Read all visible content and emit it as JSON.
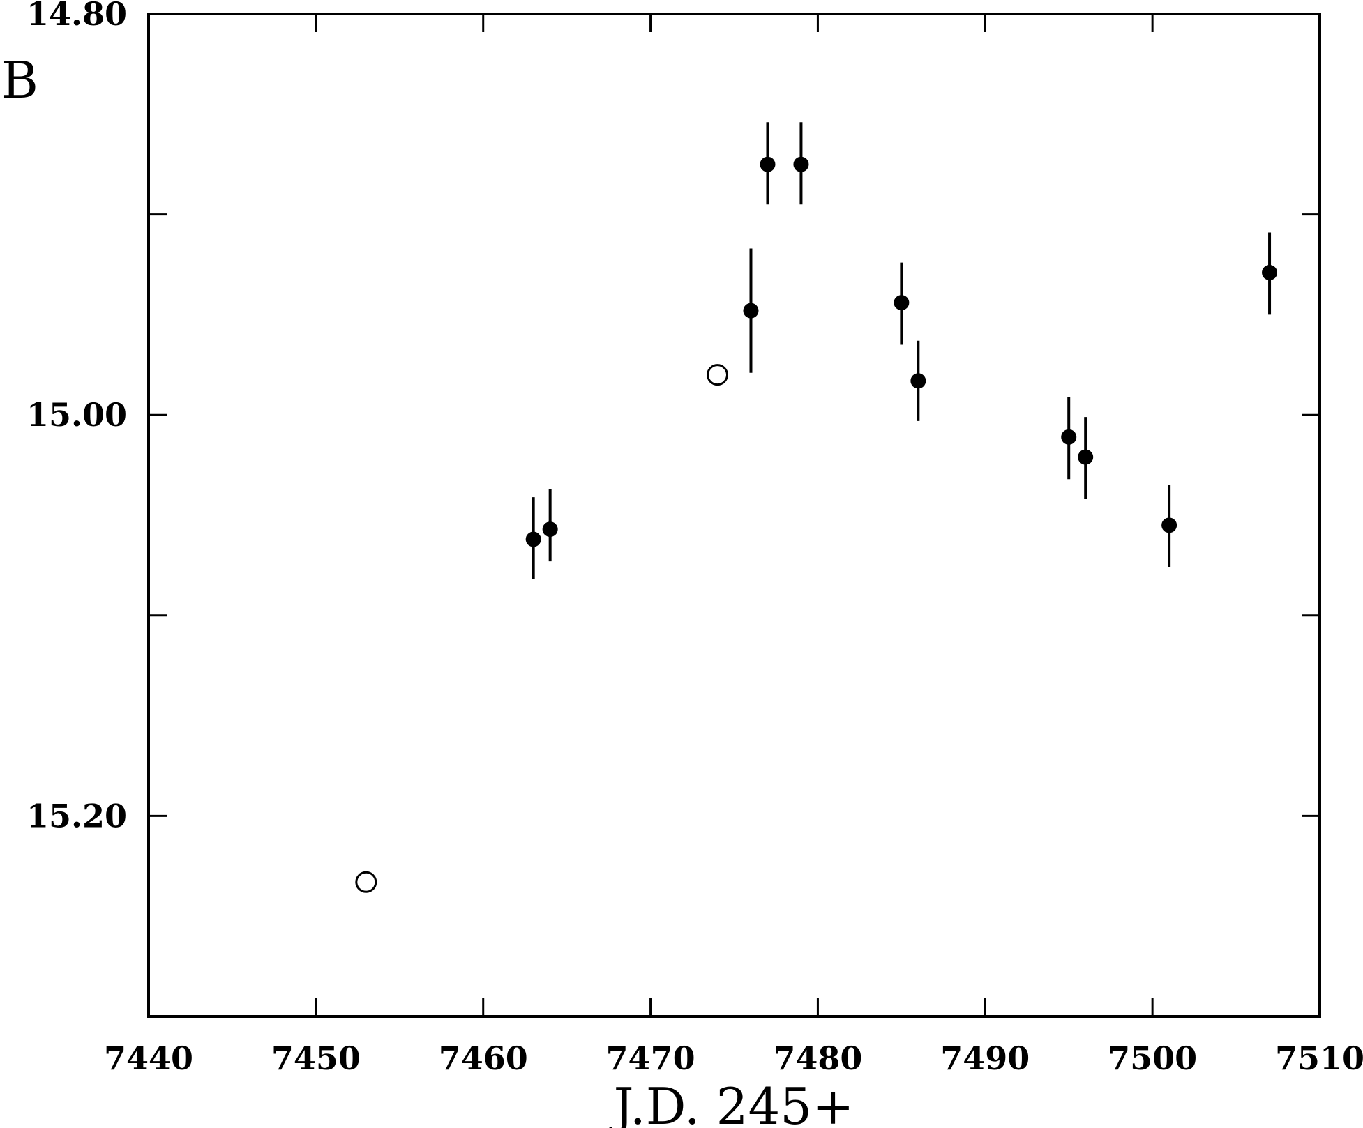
{
  "chart_data": {
    "type": "scatter",
    "title": "",
    "xlabel": "J.D. 245+",
    "ylabel": "B",
    "xlim": [
      7440,
      7510
    ],
    "ylim": [
      15.3,
      14.8
    ],
    "y_inverted": true,
    "grid": false,
    "x_ticks": [
      7440,
      7450,
      7460,
      7470,
      7480,
      7490,
      7500,
      7510
    ],
    "x_tick_labels": [
      "7440",
      "7450",
      "7460",
      "7470",
      "7480",
      "7490",
      "7500",
      "7510"
    ],
    "y_ticks": [
      14.8,
      15.0,
      15.2
    ],
    "y_tick_labels": [
      "14.80",
      "15.00",
      "15.20"
    ],
    "y_minor_ticks": [
      14.9,
      15.1
    ],
    "series": [
      {
        "marker": "filled-circle",
        "points": [
          {
            "x": 7463,
            "y": 15.062,
            "err_low": 15.041,
            "err_high": 15.082
          },
          {
            "x": 7464,
            "y": 15.057,
            "err_low": 15.037,
            "err_high": 15.073
          },
          {
            "x": 7476,
            "y": 14.948,
            "err_low": 14.917,
            "err_high": 14.979
          },
          {
            "x": 7477,
            "y": 14.875,
            "err_low": 14.854,
            "err_high": 14.895
          },
          {
            "x": 7479,
            "y": 14.875,
            "err_low": 14.854,
            "err_high": 14.895
          },
          {
            "x": 7485,
            "y": 14.944,
            "err_low": 14.924,
            "err_high": 14.965
          },
          {
            "x": 7486,
            "y": 14.983,
            "err_low": 14.963,
            "err_high": 15.003
          },
          {
            "x": 7495,
            "y": 15.011,
            "err_low": 14.991,
            "err_high": 15.032
          },
          {
            "x": 7496,
            "y": 15.021,
            "err_low": 15.001,
            "err_high": 15.042
          },
          {
            "x": 7501,
            "y": 15.055,
            "err_low": 15.035,
            "err_high": 15.076
          },
          {
            "x": 7507,
            "y": 14.929,
            "err_low": 14.909,
            "err_high": 14.95
          }
        ]
      },
      {
        "marker": "open-circle",
        "points": [
          {
            "x": 7453,
            "y": 15.233
          },
          {
            "x": 7474,
            "y": 14.98
          }
        ]
      }
    ]
  }
}
